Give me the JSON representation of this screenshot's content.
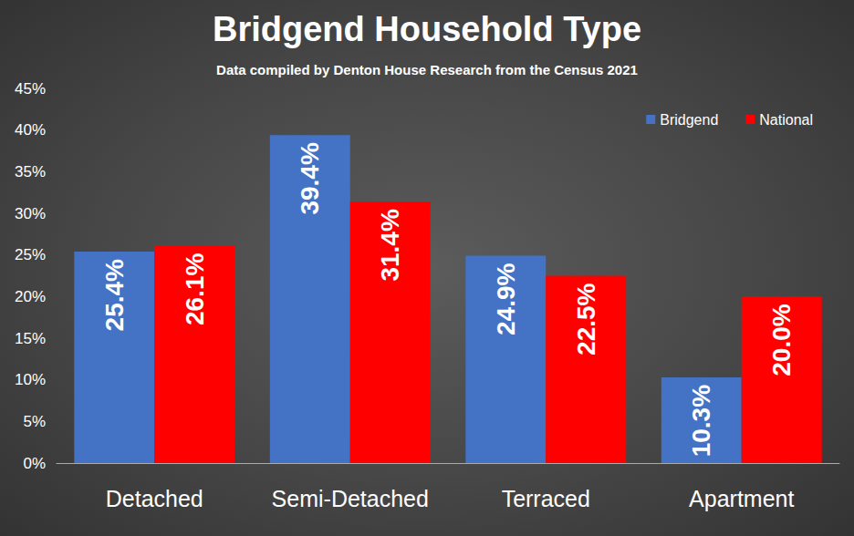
{
  "chart_data": {
    "type": "bar",
    "title": "Bridgend Household Type",
    "subtitle": "Data compiled by Denton House Research from the Census 2021",
    "categories": [
      "Detached",
      "Semi-Detached",
      "Terraced",
      "Apartment"
    ],
    "series": [
      {
        "name": "Bridgend",
        "color": "#4472c4",
        "values": [
          25.4,
          39.4,
          24.9,
          10.3
        ],
        "value_labels": [
          "25.4%",
          "39.4%",
          "24.9%",
          "10.3%"
        ]
      },
      {
        "name": "National",
        "color": "#ff0000",
        "values": [
          26.1,
          31.4,
          22.5,
          20.0
        ],
        "value_labels": [
          "26.1%",
          "31.4%",
          "22.5%",
          "20.0%"
        ]
      }
    ],
    "ylim": [
      0,
      45
    ],
    "yticks": [
      {
        "value": 0,
        "label": "0%"
      },
      {
        "value": 5,
        "label": "5%"
      },
      {
        "value": 10,
        "label": "10%"
      },
      {
        "value": 15,
        "label": "15%"
      },
      {
        "value": 20,
        "label": "20%"
      },
      {
        "value": 25,
        "label": "25%"
      },
      {
        "value": 30,
        "label": "30%"
      },
      {
        "value": 35,
        "label": "35%"
      },
      {
        "value": 40,
        "label": "40%"
      },
      {
        "value": 45,
        "label": "45%"
      }
    ],
    "grid": false,
    "legend": "upper right",
    "data_labels": true
  }
}
